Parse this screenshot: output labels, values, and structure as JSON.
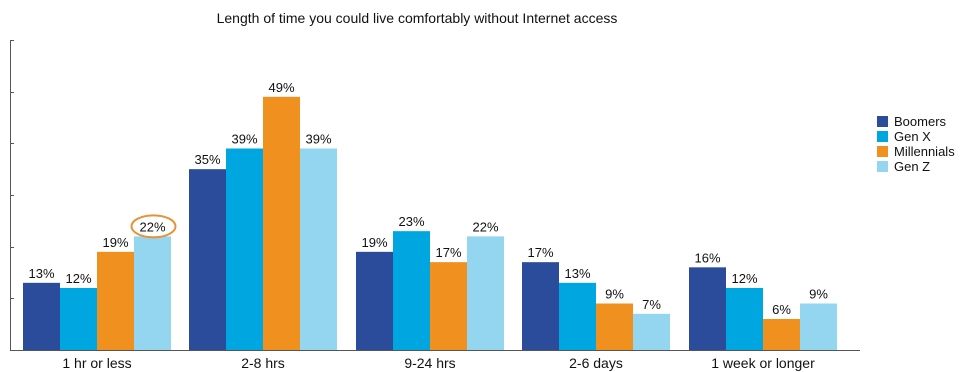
{
  "chart_data": {
    "type": "bar",
    "title": "Length of time you could live comfortably without Internet access",
    "categories": [
      "1 hr or less",
      "2-8 hrs",
      "9-24 hrs",
      "2-6 days",
      "1 week or longer"
    ],
    "series": [
      {
        "name": "Boomers",
        "color": "#2b4b9b",
        "values": [
          13,
          35,
          19,
          17,
          16
        ]
      },
      {
        "name": "Gen X",
        "color": "#00a6df",
        "values": [
          12,
          39,
          23,
          13,
          12
        ]
      },
      {
        "name": "Millennials",
        "color": "#f0901e",
        "values": [
          19,
          49,
          17,
          9,
          6
        ]
      },
      {
        "name": "Gen Z",
        "color": "#94d6ef",
        "values": [
          22,
          39,
          22,
          7,
          9
        ]
      }
    ],
    "value_suffix": "%",
    "ylim": [
      0,
      60
    ],
    "highlight": {
      "series": "Gen Z",
      "category": "1 hr or less",
      "color": "#e8913a"
    },
    "legend_position": "right",
    "grid": false
  }
}
